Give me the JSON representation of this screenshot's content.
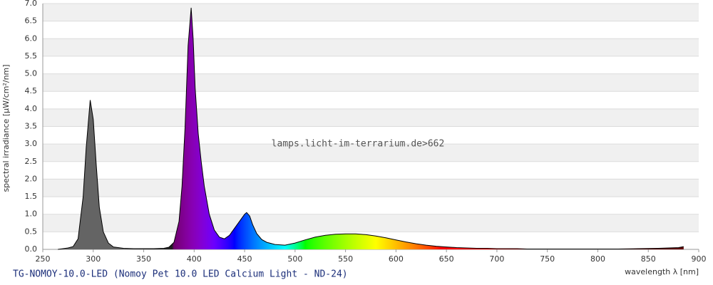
{
  "chart_data": {
    "type": "area",
    "caption": "TG-NOMOY-10.0-LED (Nomoy Pet 10.0 LED Calcium Light - ND-24)",
    "watermark": "lamps.licht-im-terrarium.de>662",
    "y_label": "spectral irradiance [µW/cm²/nm]",
    "x_label": "wavelength λ [nm]",
    "xlim": [
      250,
      900
    ],
    "ylim": [
      0,
      7
    ],
    "xticks": [
      250,
      300,
      350,
      400,
      450,
      500,
      550,
      600,
      650,
      700,
      750,
      800,
      850,
      900
    ],
    "yticks": [
      {
        "value": 0,
        "label": "0.0"
      },
      0.5,
      {
        "value": 1,
        "label": "1.0"
      },
      1.5,
      {
        "value": 2,
        "label": "2.0"
      },
      2.5,
      {
        "value": 3,
        "label": "3.0"
      },
      3.5,
      {
        "value": 4,
        "label": "4.0"
      },
      4.5,
      {
        "value": 5,
        "label": "5.0"
      },
      5.5,
      {
        "value": 6,
        "label": "6.0"
      },
      6.5,
      {
        "value": 7,
        "label": "7.0"
      }
    ],
    "grid": true,
    "x": [
      265,
      270,
      275,
      280,
      285,
      290,
      293,
      297,
      300,
      303,
      306,
      310,
      315,
      320,
      330,
      340,
      350,
      360,
      370,
      375,
      380,
      385,
      388,
      391,
      394,
      397,
      399,
      401,
      404,
      407,
      410,
      415,
      420,
      425,
      430,
      435,
      440,
      445,
      450,
      452,
      455,
      458,
      462,
      467,
      472,
      480,
      490,
      500,
      510,
      520,
      530,
      540,
      550,
      560,
      570,
      580,
      590,
      600,
      610,
      620,
      630,
      640,
      650,
      660,
      670,
      680,
      690,
      700,
      710,
      720,
      730,
      740,
      750,
      760,
      780,
      800,
      820,
      840,
      860,
      870,
      880,
      885
    ],
    "values": [
      0,
      0.02,
      0.04,
      0.08,
      0.3,
      1.5,
      2.9,
      4.25,
      3.7,
      2.4,
      1.2,
      0.5,
      0.18,
      0.07,
      0.03,
      0.02,
      0.02,
      0.02,
      0.03,
      0.06,
      0.2,
      0.8,
      1.8,
      3.5,
      5.8,
      6.88,
      6.0,
      4.6,
      3.3,
      2.5,
      1.8,
      1.0,
      0.55,
      0.35,
      0.3,
      0.4,
      0.6,
      0.8,
      1.0,
      1.05,
      0.95,
      0.7,
      0.45,
      0.28,
      0.2,
      0.14,
      0.12,
      0.18,
      0.27,
      0.35,
      0.4,
      0.43,
      0.44,
      0.44,
      0.42,
      0.38,
      0.33,
      0.27,
      0.21,
      0.16,
      0.12,
      0.09,
      0.07,
      0.05,
      0.04,
      0.03,
      0.03,
      0.02,
      0.02,
      0.02,
      0.01,
      0.01,
      0.01,
      0.01,
      0.01,
      0.01,
      0.01,
      0.02,
      0.03,
      0.04,
      0.05,
      0.08
    ]
  }
}
